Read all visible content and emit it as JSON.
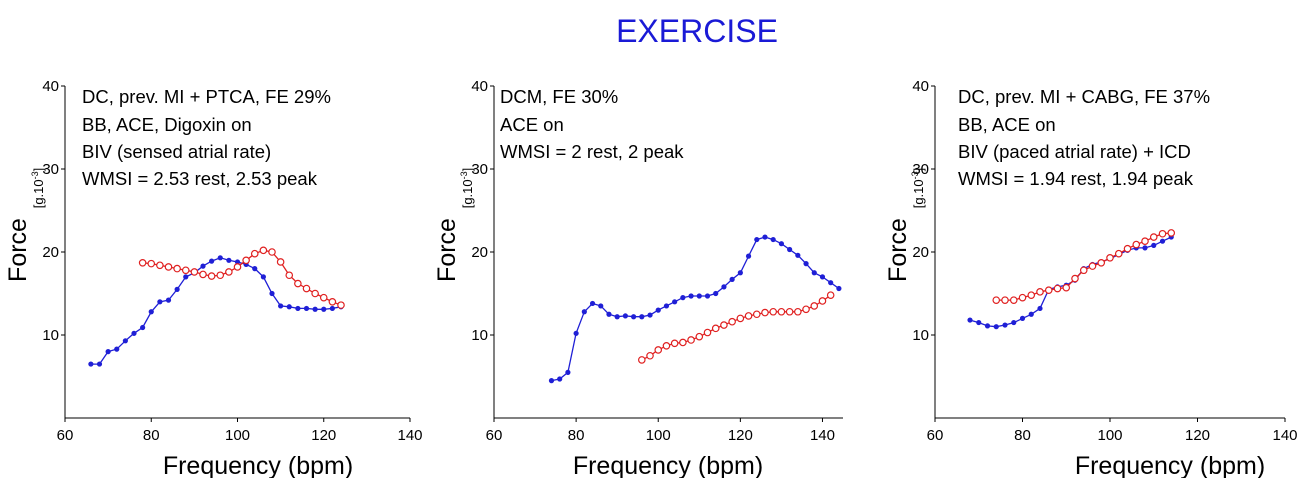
{
  "figure_title": "EXERCISE",
  "colors": {
    "title": "#1a1ad6",
    "blue_series": "#1f1fd6",
    "red_series": "#e02020"
  },
  "chart_data": [
    {
      "type": "line",
      "xlabel": "Frequency (bpm)",
      "ylabel": "Force",
      "yunit": {
        "base": "[g.10",
        "sup": "-3",
        "close": "]"
      },
      "xlim": [
        60,
        140
      ],
      "ylim": [
        0,
        40
      ],
      "xticks": [
        60,
        80,
        100,
        120,
        140
      ],
      "yticks": [
        10,
        20,
        30,
        40
      ],
      "annotations": [
        "DC, prev. MI + PTCA, FE 29%",
        "BB, ACE, Digoxin on",
        "BIV (sensed atrial rate)",
        "WMSI = 2.53 rest, 2.53 peak"
      ],
      "series": [
        {
          "color": "blue",
          "marker": "dot",
          "x": [
            66,
            68,
            70,
            72,
            74,
            76,
            78,
            80,
            82,
            84,
            86,
            88,
            90,
            92,
            94,
            96,
            98,
            100,
            102,
            104,
            106,
            108,
            110,
            112,
            114,
            116,
            118,
            120,
            122,
            124
          ],
          "y": [
            6.5,
            6.5,
            8,
            8.3,
            9.3,
            10.2,
            10.9,
            12.8,
            14,
            14.2,
            15.5,
            17,
            17.5,
            18.3,
            18.9,
            19.3,
            19,
            18.8,
            18.5,
            18,
            17,
            15,
            13.5,
            13.4,
            13.2,
            13.2,
            13.1,
            13.1,
            13.2,
            13.4
          ]
        },
        {
          "color": "red",
          "marker": "circle",
          "x": [
            78,
            80,
            82,
            84,
            86,
            88,
            90,
            92,
            94,
            96,
            98,
            100,
            102,
            104,
            106,
            108,
            110,
            112,
            114,
            116,
            118,
            120,
            122,
            124
          ],
          "y": [
            18.7,
            18.6,
            18.4,
            18.2,
            18,
            17.8,
            17.6,
            17.3,
            17.1,
            17.2,
            17.6,
            18.2,
            19,
            19.8,
            20.2,
            20,
            18.8,
            17.2,
            16.2,
            15.6,
            15,
            14.5,
            14,
            13.6
          ]
        }
      ]
    },
    {
      "type": "line",
      "xlabel": "Frequency (bpm)",
      "ylabel": "Force",
      "yunit": {
        "base": "[g.10",
        "sup": "-3",
        "close": "]"
      },
      "xlim": [
        60,
        145
      ],
      "ylim": [
        0,
        40
      ],
      "xticks": [
        60,
        80,
        100,
        120,
        140
      ],
      "yticks": [
        10,
        20,
        30,
        40
      ],
      "annotations": [
        "DCM, FE 30%",
        "ACE on",
        "WMSI = 2 rest, 2 peak"
      ],
      "series": [
        {
          "color": "blue",
          "marker": "dot",
          "x": [
            74,
            76,
            78,
            80,
            82,
            84,
            86,
            88,
            90,
            92,
            94,
            96,
            98,
            100,
            102,
            104,
            106,
            108,
            110,
            112,
            114,
            116,
            118,
            120,
            122,
            124,
            126,
            128,
            130,
            132,
            134,
            136,
            138,
            140,
            142,
            144
          ],
          "y": [
            4.5,
            4.7,
            5.5,
            10.2,
            12.8,
            13.8,
            13.5,
            12.5,
            12.2,
            12.3,
            12.2,
            12.2,
            12.4,
            13,
            13.5,
            14,
            14.5,
            14.7,
            14.7,
            14.7,
            15,
            15.8,
            16.7,
            17.5,
            19.5,
            21.5,
            21.8,
            21.5,
            21,
            20.3,
            19.6,
            18.6,
            17.5,
            17,
            16.3,
            15.6
          ]
        },
        {
          "color": "red",
          "marker": "circle",
          "x": [
            96,
            98,
            100,
            102,
            104,
            106,
            108,
            110,
            112,
            114,
            116,
            118,
            120,
            122,
            124,
            126,
            128,
            130,
            132,
            134,
            136,
            138,
            140,
            142
          ],
          "y": [
            7,
            7.5,
            8.2,
            8.7,
            9,
            9.1,
            9.4,
            9.8,
            10.3,
            10.8,
            11.2,
            11.6,
            12,
            12.3,
            12.5,
            12.7,
            12.8,
            12.8,
            12.8,
            12.8,
            13.1,
            13.5,
            14.1,
            14.8
          ]
        }
      ]
    },
    {
      "type": "line",
      "xlabel": "Frequency (bpm)",
      "ylabel": "Force",
      "yunit": {
        "base": "[g.10",
        "sup": "-3",
        "close": "]"
      },
      "xlim": [
        60,
        140
      ],
      "ylim": [
        0,
        40
      ],
      "xticks": [
        60,
        80,
        100,
        120,
        140
      ],
      "yticks": [
        10,
        20,
        30,
        40
      ],
      "annotations": [
        "DC, prev. MI + CABG, FE 37%",
        "BB, ACE on",
        "BIV (paced atrial rate) + ICD",
        "WMSI = 1.94 rest, 1.94 peak"
      ],
      "series": [
        {
          "color": "blue",
          "marker": "dot",
          "x": [
            68,
            70,
            72,
            74,
            76,
            78,
            80,
            82,
            84,
            86,
            88,
            90,
            92,
            94,
            96,
            98,
            100,
            102,
            104,
            106,
            108,
            110,
            112,
            114
          ],
          "y": [
            11.8,
            11.5,
            11.1,
            11,
            11.2,
            11.5,
            12,
            12.5,
            13.2,
            15.5,
            15.8,
            16,
            16.6,
            18,
            18.5,
            18.8,
            19.2,
            19.7,
            20.2,
            20.5,
            20.5,
            20.8,
            21.3,
            21.8
          ]
        },
        {
          "color": "red",
          "marker": "circle",
          "x": [
            74,
            76,
            78,
            80,
            82,
            84,
            86,
            88,
            90,
            92,
            94,
            96,
            98,
            100,
            102,
            104,
            106,
            108,
            110,
            112,
            114
          ],
          "y": [
            14.2,
            14.2,
            14.2,
            14.5,
            14.8,
            15.2,
            15.4,
            15.6,
            15.7,
            16.8,
            17.8,
            18.3,
            18.7,
            19.3,
            19.8,
            20.4,
            20.9,
            21.3,
            21.8,
            22.2,
            22.3
          ]
        }
      ]
    }
  ]
}
